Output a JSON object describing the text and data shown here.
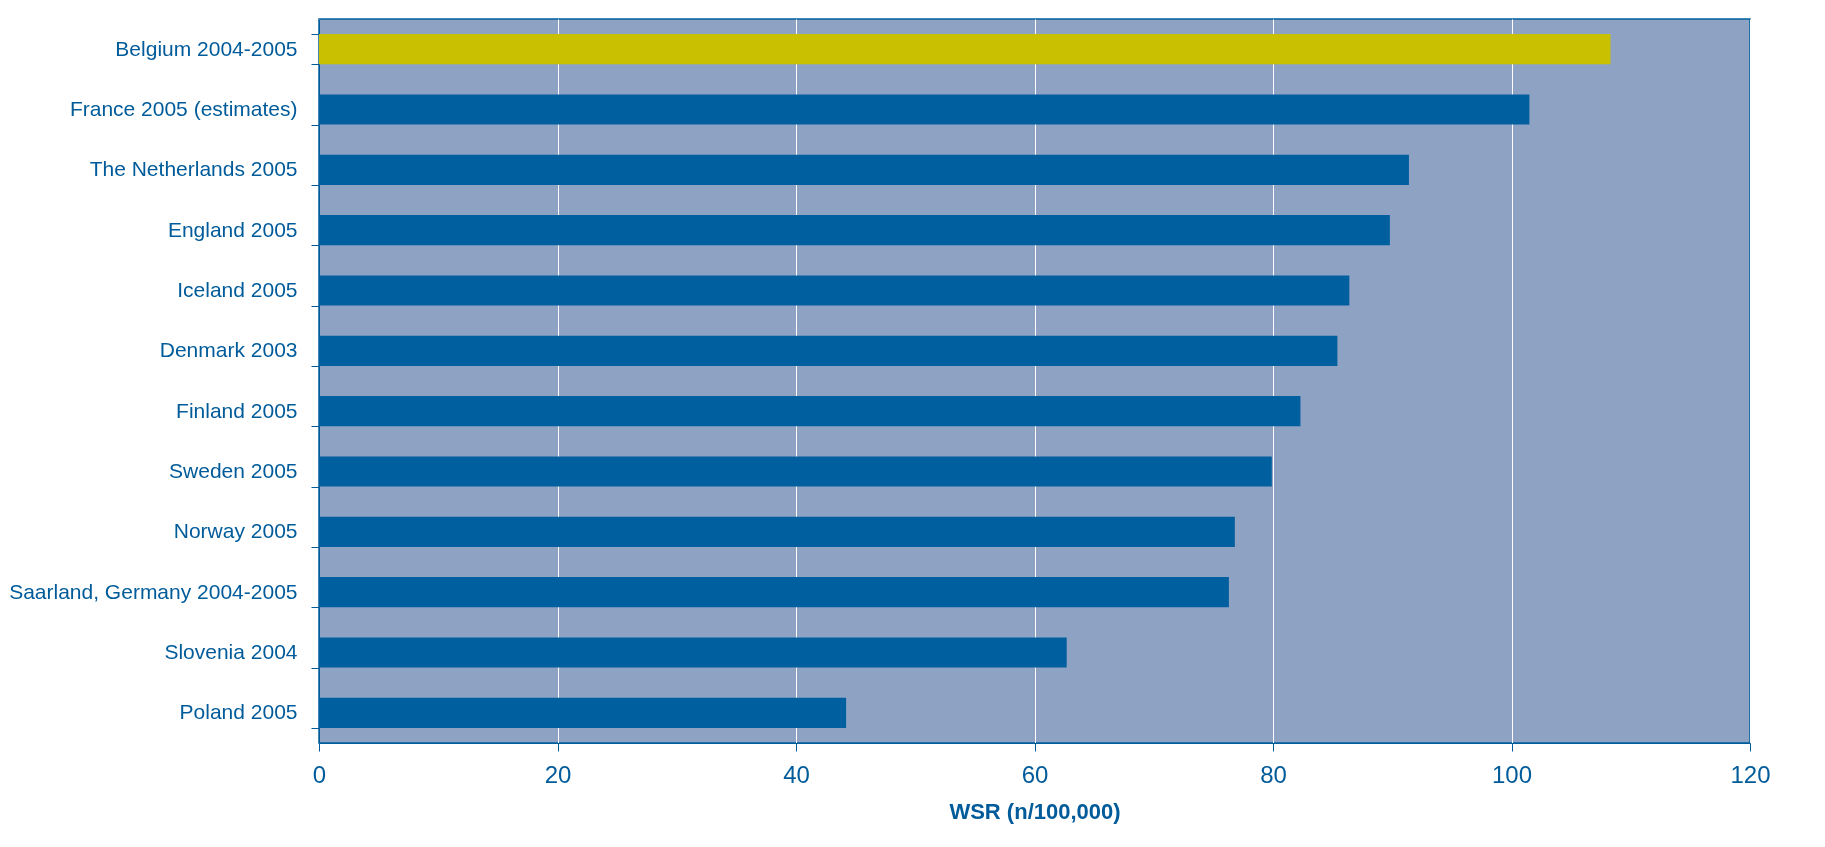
{
  "chart_data": {
    "type": "bar",
    "orientation": "horizontal",
    "xlabel": "WSR (n/100,000)",
    "categories": [
      "Belgium 2004-2005",
      "France 2005 (estimates)",
      "The Netherlands 2005",
      "England 2005",
      "Iceland 2005",
      "Denmark 2003",
      "Finland 2005 ",
      "Sweden 2005",
      "Norway 2005",
      "Saarland, Germany 2004-2005",
      "Slovenia 2004",
      "Poland 2005"
    ],
    "values": [
      108.3,
      101.5,
      91.4,
      89.8,
      86.4,
      85.4,
      82.3,
      79.9,
      76.8,
      76.3,
      62.7,
      44.2
    ],
    "colors": [
      "#c8c000",
      "#005f9e",
      "#005f9e",
      "#005f9e",
      "#005f9e",
      "#005f9e",
      "#005f9e",
      "#005f9e",
      "#005f9e",
      "#005f9e",
      "#005f9e",
      "#005f9e"
    ],
    "xlim": [
      0,
      120
    ],
    "xticks": [
      0,
      20,
      40,
      60,
      80,
      100,
      120
    ],
    "grid": "x"
  }
}
